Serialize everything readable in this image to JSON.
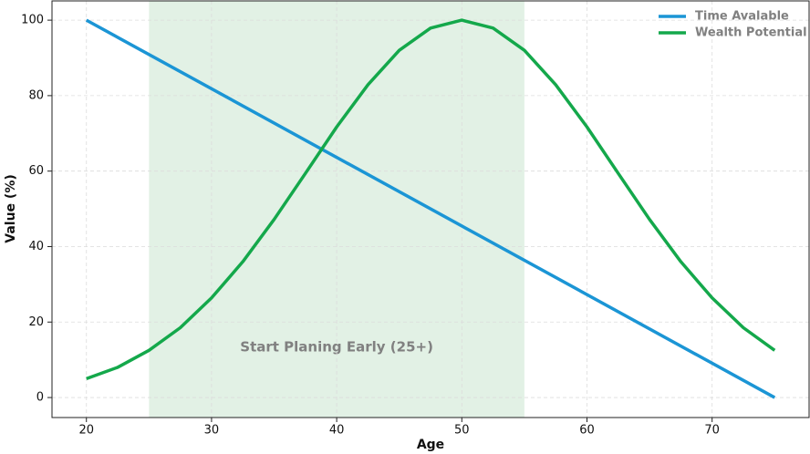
{
  "chart_data": {
    "type": "line",
    "x_label": "Age",
    "y_label": "Value (%)",
    "xlim": [
      17.25,
      77.75
    ],
    "ylim": [
      -5.3,
      105.1
    ],
    "xticks": [
      20,
      30,
      40,
      50,
      60,
      70
    ],
    "yticks": [
      0,
      20,
      40,
      60,
      80,
      100
    ],
    "grid": true,
    "legend": "upper right",
    "shaded_region": {
      "range": [
        25,
        55
      ],
      "color": "#e2f1e5",
      "label": "Start Planing Early (25+)"
    },
    "series": [
      {
        "name": "Time Avalable",
        "color": "#1b95d5",
        "x": [
          20,
          75
        ],
        "values": [
          100,
          0
        ]
      },
      {
        "name": "Wealth Potential",
        "color": "#14a84b",
        "x": [
          20,
          22.5,
          25,
          27.5,
          30,
          32.5,
          35,
          37.5,
          40,
          42.5,
          45,
          47.5,
          50,
          52.5,
          55,
          57.5,
          60,
          62.5,
          65,
          67.5,
          70,
          72.5,
          75
        ],
        "values": [
          5.0,
          8.0,
          12.5,
          18.5,
          26.4,
          36.0,
          47.2,
          59.4,
          71.7,
          82.9,
          92.0,
          97.9,
          100,
          97.9,
          92.0,
          82.9,
          71.7,
          59.4,
          47.2,
          36.0,
          26.4,
          18.5,
          12.5
        ]
      }
    ]
  }
}
